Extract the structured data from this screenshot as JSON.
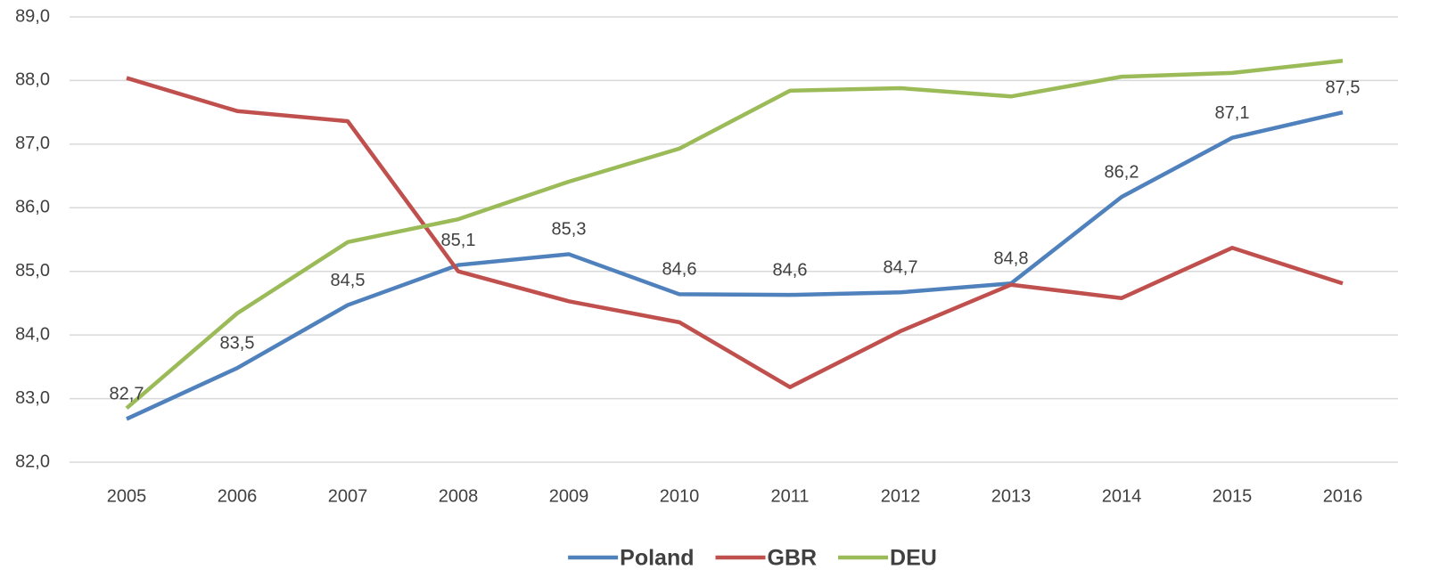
{
  "chart_data": {
    "type": "line",
    "categories": [
      "2005",
      "2006",
      "2007",
      "2008",
      "2009",
      "2010",
      "2011",
      "2012",
      "2013",
      "2014",
      "2015",
      "2016"
    ],
    "series": [
      {
        "name": "Poland",
        "color": "#4f81bd",
        "values": [
          82.68,
          83.48,
          84.47,
          85.1,
          85.27,
          84.64,
          84.63,
          84.67,
          84.81,
          86.17,
          87.1,
          87.5
        ],
        "value_labels": [
          "82,7",
          "83,5",
          "84,5",
          "85,1",
          "85,3",
          "84,6",
          "84,6",
          "84,7",
          "84,8",
          "86,2",
          "87,1",
          "87,5"
        ]
      },
      {
        "name": "GBR",
        "color": "#c0504d",
        "values": [
          88.04,
          87.52,
          87.36,
          85.0,
          84.53,
          84.2,
          83.18,
          84.06,
          84.79,
          84.58,
          85.37,
          84.81
        ]
      },
      {
        "name": "DEU",
        "color": "#9bbb59",
        "values": [
          82.85,
          84.34,
          85.46,
          85.82,
          86.41,
          86.93,
          87.84,
          87.88,
          87.75,
          88.06,
          88.12,
          88.31
        ]
      }
    ],
    "ylim": [
      82,
      89
    ],
    "yticks": [
      {
        "value": 82,
        "label": "82,0"
      },
      {
        "value": 83,
        "label": "83,0"
      },
      {
        "value": 84,
        "label": "84,0"
      },
      {
        "value": 85,
        "label": "85,0"
      },
      {
        "value": 86,
        "label": "86,0"
      },
      {
        "value": 87,
        "label": "87,0"
      },
      {
        "value": 88,
        "label": "88,0"
      },
      {
        "value": 89,
        "label": "89,0"
      }
    ],
    "grid": true,
    "legend": "bottom"
  }
}
